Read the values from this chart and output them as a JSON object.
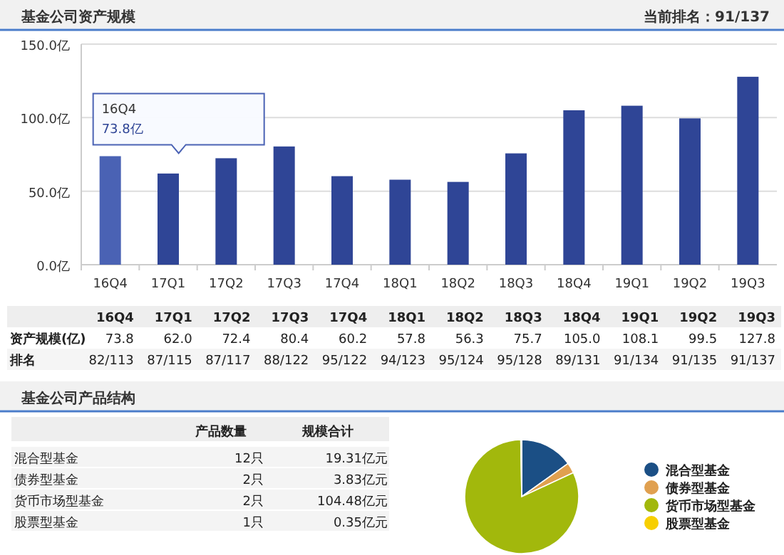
{
  "chart_data": [
    {
      "type": "bar",
      "title": "基金公司资产规模",
      "subtitle": "当前排名：91/137",
      "categories": [
        "16Q4",
        "17Q1",
        "17Q2",
        "17Q3",
        "17Q4",
        "18Q1",
        "18Q2",
        "18Q3",
        "18Q4",
        "19Q1",
        "19Q2",
        "19Q3"
      ],
      "values": [
        73.8,
        62.0,
        72.4,
        80.4,
        60.2,
        57.8,
        56.3,
        75.7,
        105.0,
        108.1,
        99.5,
        127.8
      ],
      "colors": [
        "#4a62b4",
        "#2f4596",
        "#2f4596",
        "#2f4596",
        "#2f4596",
        "#2f4596",
        "#2f4596",
        "#2f4596",
        "#2f4596",
        "#2f4596",
        "#2f4596",
        "#2f4596"
      ],
      "value_labels": [
        "73.8",
        "62.0",
        "72.4",
        "80.4",
        "60.2",
        "57.8",
        "56.3",
        "75.7",
        "105.0",
        "108.1",
        "99.5",
        "127.8"
      ],
      "ylim": [
        0,
        150
      ],
      "yticks": [
        {
          "value": 0,
          "label": "0.0亿"
        },
        {
          "value": 50,
          "label": "50.0亿"
        },
        {
          "value": 100,
          "label": "100.0亿"
        },
        {
          "value": 150,
          "label": "150.0亿"
        }
      ],
      "grid": "y",
      "annotations": [
        {
          "text": "16Q4\n73.8亿",
          "x": "16Q4",
          "y": 73.8
        },
        "资产规模(亿)",
        "排名",
        "82/113",
        "87/115",
        "87/117",
        "88/122",
        "95/122",
        "94/123",
        "95/124",
        "95/128",
        "89/131",
        "91/134",
        "91/135",
        "91/137"
      ]
    },
    {
      "type": "other",
      "title": "基金公司产品结构",
      "annotations": [
        "产品数量",
        "规模合计",
        "混合型基金",
        "12只",
        "19.31亿元",
        "债券型基金",
        "2只",
        "3.83亿元",
        "货币市场型基金",
        "2只",
        "104.48亿元",
        "股票型基金",
        "1只",
        "0.35亿元"
      ]
    },
    {
      "type": "pie",
      "categories": [
        "混合型基金",
        "债券型基金",
        "货币市场型基金",
        "股票型基金"
      ],
      "values": [
        15.09,
        2.99,
        81.65,
        0.27
      ],
      "colors": [
        "#1b4f85",
        "#e0a050",
        "#a2b80c",
        "#f7cf00"
      ],
      "legend": "right"
    }
  ]
}
